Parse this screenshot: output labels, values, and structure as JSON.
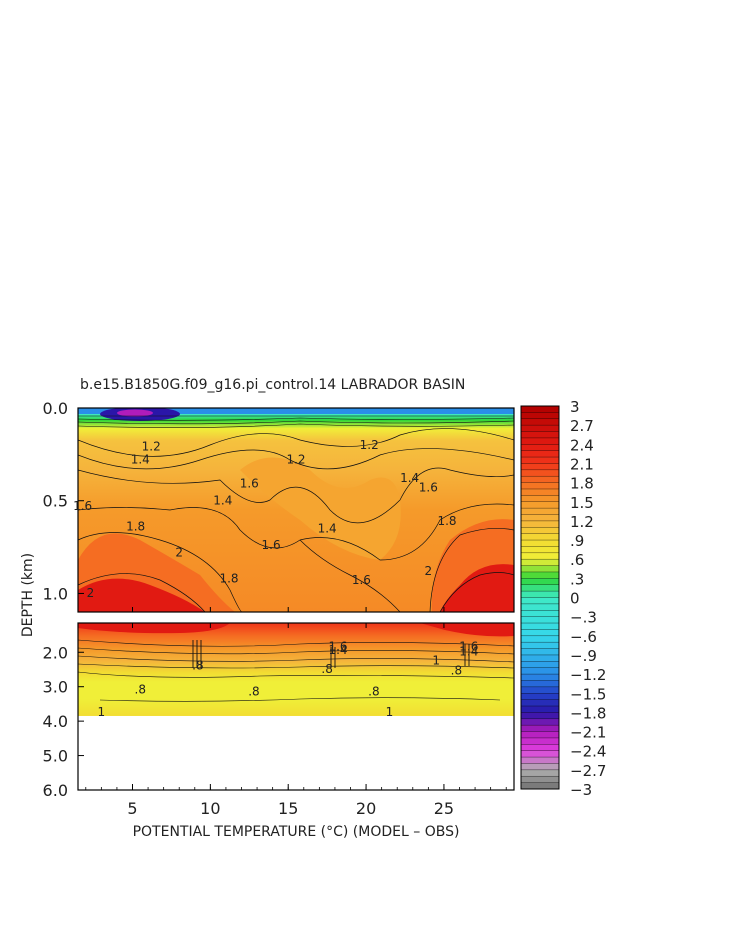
{
  "chart_data": {
    "type": "heatmap",
    "title": "b.e15.B1850G.f09_g16.pi_control.14 LABRADOR BASIN",
    "xlabel": "POTENTIAL TEMPERATURE (°C) (MODEL – OBS)",
    "ylabel": "DEPTH (km)",
    "x_range": [
      1.5,
      29.5
    ],
    "x_ticks": [
      5,
      10,
      15,
      20,
      25
    ],
    "x_tick_labels": [
      "5",
      "10",
      "15",
      "20",
      "25"
    ],
    "upper_panel": {
      "y_range": [
        0.0,
        1.1
      ],
      "y_ticks": [
        0.0,
        0.5,
        1.0
      ],
      "y_tick_labels": [
        "0.0",
        "0.5",
        "1.0"
      ],
      "contour_labels": [
        {
          "text": "1.4",
          "x": 5.5,
          "y": 0.3
        },
        {
          "text": "1.2",
          "x": 6.2,
          "y": 0.23
        },
        {
          "text": "1.6",
          "x": 12.5,
          "y": 0.43
        },
        {
          "text": "1.2",
          "x": 15.5,
          "y": 0.3
        },
        {
          "text": "1.4",
          "x": 10.8,
          "y": 0.52
        },
        {
          "text": "1.6",
          "x": 1.8,
          "y": 0.55
        },
        {
          "text": "1.8",
          "x": 5.2,
          "y": 0.66
        },
        {
          "text": "2",
          "x": 8.0,
          "y": 0.8
        },
        {
          "text": "1.8",
          "x": 11.2,
          "y": 0.94
        },
        {
          "text": "1.6",
          "x": 13.9,
          "y": 0.76
        },
        {
          "text": "1.4",
          "x": 17.5,
          "y": 0.67
        },
        {
          "text": "1.6",
          "x": 19.7,
          "y": 0.95
        },
        {
          "text": "1.2",
          "x": 20.2,
          "y": 0.22
        },
        {
          "text": "1.4",
          "x": 22.8,
          "y": 0.4
        },
        {
          "text": "1.6",
          "x": 24.0,
          "y": 0.45
        },
        {
          "text": "1.8",
          "x": 25.2,
          "y": 0.63
        },
        {
          "text": "2",
          "x": 24.0,
          "y": 0.9
        },
        {
          "text": "2",
          "x": 2.3,
          "y": 1.02
        }
      ]
    },
    "lower_panel": {
      "y_range": [
        1.15,
        6.0
      ],
      "y_ticks": [
        2.0,
        3.0,
        4.0,
        5.0,
        6.0
      ],
      "y_tick_labels": [
        "2.0",
        "3.0",
        "4.0",
        "5.0",
        "6.0"
      ],
      "data_bottom": 3.85,
      "contour_labels": [
        {
          "text": ".8",
          "x": 5.5,
          "y": 3.2
        },
        {
          "text": ".8",
          "x": 12.8,
          "y": 3.25
        },
        {
          "text": ".8",
          "x": 20.5,
          "y": 3.25
        },
        {
          "text": ".8",
          "x": 25.8,
          "y": 2.65
        },
        {
          "text": ".8",
          "x": 17.5,
          "y": 2.6
        },
        {
          "text": ".8",
          "x": 9.2,
          "y": 2.5
        },
        {
          "text": "1",
          "x": 3.0,
          "y": 3.85
        },
        {
          "text": "1",
          "x": 21.5,
          "y": 3.85
        },
        {
          "text": "1",
          "x": 24.5,
          "y": 2.35
        },
        {
          "text": "1.6",
          "x": 18.2,
          "y": 1.95
        },
        {
          "text": "1.4",
          "x": 18.2,
          "y": 2.05
        },
        {
          "text": "1.6",
          "x": 26.6,
          "y": 1.95
        },
        {
          "text": "1.4",
          "x": 26.6,
          "y": 2.1
        }
      ]
    },
    "colorbar": {
      "min": -3.0,
      "max": 3.0,
      "tick_labels": [
        "3",
        "2.7",
        "2.4",
        "2.1",
        "1.8",
        "1.5",
        "1.2",
        ".9",
        ".6",
        ".3",
        "0",
        "−.3",
        "−.6",
        "−.9",
        "−1.2",
        "−1.5",
        "−1.8",
        "−2.1",
        "−2.4",
        "−2.7",
        "−3"
      ],
      "colors": {
        "c3.0": "#b00000",
        "c2.4": "#e11a12",
        "c2.1": "#f0361a",
        "c1.8": "#f56d22",
        "c1.5": "#f59a2a",
        "c1.2": "#f5b43c",
        "c0.9": "#f2dc32",
        "c0.6": "#f0ef38",
        "c0.3": "#2fd638",
        "c0.0": "#3fe9c6",
        "cm0.6": "#36d8ea",
        "cm1.2": "#2a8ee8",
        "cm1.5": "#2444c9",
        "cm1.8": "#2a16a8",
        "cm2.1": "#b01cbb",
        "cm2.4": "#e040df",
        "cm2.7": "#b0b0b0",
        "cm3.0": "#707070"
      }
    }
  }
}
